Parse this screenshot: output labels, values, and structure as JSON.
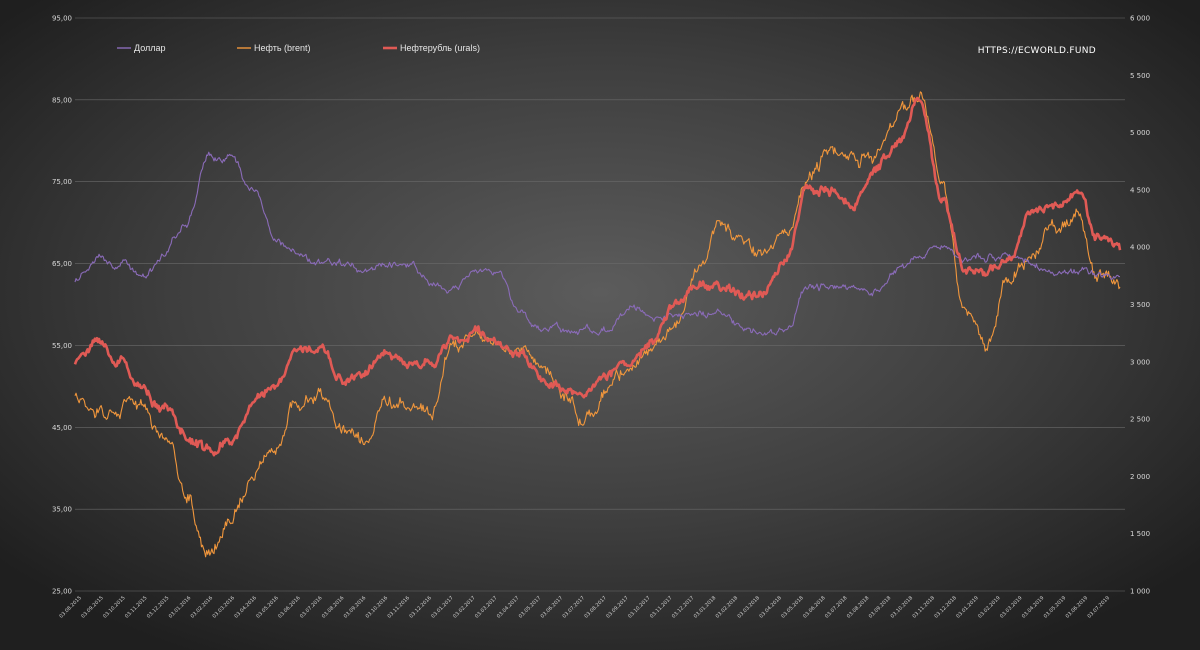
{
  "chart_data": {
    "type": "line",
    "watermark": "HTTPS://ECWORLD.FUND",
    "left_axis": {
      "min": 25,
      "max": 95,
      "ticks": [
        "25,00",
        "35,00",
        "45,00",
        "55,00",
        "65,00",
        "75,00",
        "85,00",
        "95,00"
      ],
      "tick_values": [
        25,
        35,
        45,
        55,
        65,
        75,
        85,
        95
      ]
    },
    "right_axis": {
      "min": 1000,
      "max": 6000,
      "ticks": [
        "1 000",
        "1 500",
        "2 000",
        "2 500",
        "3 000",
        "3 500",
        "4 000",
        "4 500",
        "5 000",
        "5 500",
        "6 000"
      ],
      "tick_values": [
        1000,
        1500,
        2000,
        2500,
        3000,
        3500,
        4000,
        4500,
        5000,
        5500,
        6000
      ]
    },
    "x_labels": [
      "03.08.2015",
      "03.09.2015",
      "03.10.2015",
      "03.11.2015",
      "03.12.2015",
      "03.01.2016",
      "03.02.2016",
      "03.03.2016",
      "03.04.2016",
      "03.05.2016",
      "03.06.2016",
      "03.07.2016",
      "03.08.2016",
      "03.09.2016",
      "03.10.2016",
      "03.11.2016",
      "03.12.2016",
      "03.01.2017",
      "03.02.2017",
      "03.03.2017",
      "03.04.2017",
      "03.05.2017",
      "03.06.2017",
      "03.07.2017",
      "03.08.2017",
      "03.09.2017",
      "03.10.2017",
      "03.11.2017",
      "03.12.2017",
      "03.01.2018",
      "03.02.2018",
      "03.03.2018",
      "03.04.2018",
      "03.05.2018",
      "03.06.2018",
      "03.07.2018",
      "03.08.2018",
      "03.09.2018",
      "03.10.2018",
      "03.11.2018",
      "03.12.2018",
      "03.01.2019",
      "03.02.2019",
      "03.03.2019",
      "03.04.2019",
      "03.05.2019",
      "03.06.2019",
      "03.07.2019"
    ],
    "series": [
      {
        "name": "Доллар",
        "axis": "left",
        "color": "#8a6bb8",
        "values": [
          63,
          66,
          65,
          63,
          66,
          70,
          78,
          78,
          74,
          68,
          66,
          65,
          65,
          64,
          65,
          65,
          63,
          62,
          64,
          64,
          59,
          57,
          57,
          57,
          57,
          60,
          58,
          59,
          59,
          59,
          57,
          56,
          57,
          62,
          62,
          62,
          62,
          64,
          66,
          67,
          65,
          66,
          66,
          65,
          64,
          64,
          64,
          63
        ]
      },
      {
        "name": "Нефть (brent)",
        "axis": "left",
        "color": "#f0963c",
        "values": [
          49,
          47,
          48,
          47,
          44,
          37,
          30,
          34,
          38,
          42,
          48,
          49,
          45,
          43,
          48,
          48,
          47,
          55,
          56,
          55,
          55,
          52,
          49,
          46,
          50,
          52,
          55,
          58,
          64,
          70,
          67,
          65,
          69,
          75,
          78,
          78,
          79,
          83,
          85,
          75,
          58,
          55,
          63,
          66,
          70,
          71,
          64,
          62
        ]
      },
      {
        "name": "Нефтерубль (urals)",
        "axis": "right",
        "color": "#e05a55",
        "values": [
          3000,
          3200,
          3000,
          2750,
          2600,
          2350,
          2250,
          2300,
          2650,
          2800,
          3100,
          3100,
          2850,
          2900,
          3050,
          2950,
          3000,
          3200,
          3250,
          3150,
          3100,
          2850,
          2750,
          2700,
          2900,
          3000,
          3150,
          3500,
          3650,
          3650,
          3550,
          3600,
          3900,
          4500,
          4500,
          4400,
          4700,
          4900,
          5300,
          4400,
          3800,
          3800,
          3900,
          4300,
          4350,
          4500,
          4100,
          3950
        ]
      }
    ]
  }
}
